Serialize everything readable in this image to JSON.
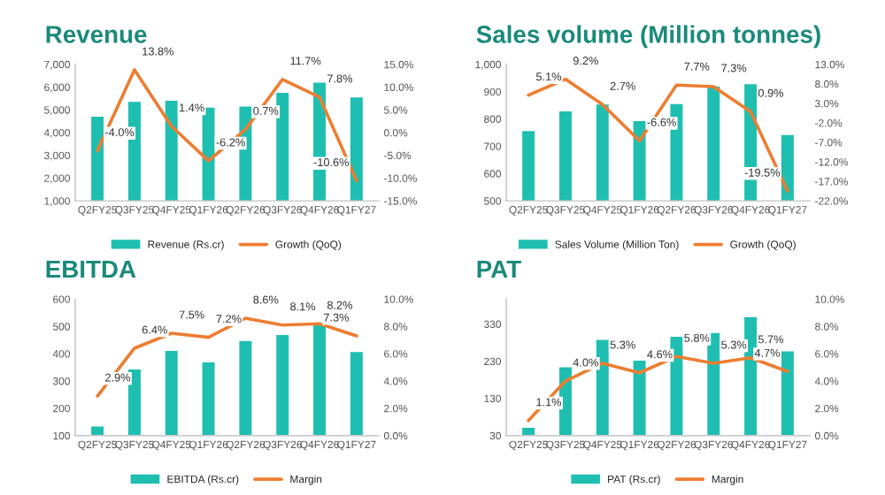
{
  "chart_data": [
    {
      "type": "bar",
      "title": "Revenue",
      "categories": [
        "Q2FY25",
        "Q3FY25",
        "Q4FY25",
        "Q1FY26",
        "Q2FY26",
        "Q3FY26",
        "Q4FY26",
        "Q1FY27"
      ],
      "series": [
        {
          "name": "Revenue (Rs.cr)",
          "type": "bar",
          "color": "#1ebfb0",
          "values": [
            4750,
            5400,
            5450,
            5150,
            5200,
            5800,
            6250,
            5600
          ]
        },
        {
          "name": "Growth (QoQ)",
          "type": "line",
          "axis": "y2",
          "color": "#ed7d31",
          "values": [
            -4.0,
            13.8,
            1.4,
            -6.2,
            0.7,
            11.7,
            7.8,
            -10.6
          ],
          "value_labels": [
            "-4.0%",
            "13.8%",
            "1.4%",
            "-6.2%",
            "0.7%",
            "11.7%",
            "7.8%",
            "-10.6%"
          ]
        }
      ],
      "ylim": [
        1000,
        7000
      ],
      "yticks": [
        {
          "value": 1000,
          "label": "1,000"
        },
        {
          "value": 2000,
          "label": "2,000"
        },
        {
          "value": 3000,
          "label": "3,000"
        },
        {
          "value": 4000,
          "label": "4,000"
        },
        {
          "value": 5000,
          "label": "5,000"
        },
        {
          "value": 6000,
          "label": "6,000"
        },
        {
          "value": 7000,
          "label": "7,000"
        }
      ],
      "y2lim": [
        -15,
        15
      ],
      "y2ticks": [
        {
          "value": -15,
          "label": "-15.0%"
        },
        {
          "value": -10,
          "label": "-10.0%"
        },
        {
          "value": -5,
          "label": "-5.0%"
        },
        {
          "value": 0,
          "label": "0.0%"
        },
        {
          "value": 5,
          "label": "5.0%"
        },
        {
          "value": 10,
          "label": "10.0%"
        },
        {
          "value": 15,
          "label": "15.0%"
        }
      ],
      "legend": "bottom",
      "grid": false
    },
    {
      "type": "bar",
      "title": "Sales volume (Million tonnes)",
      "categories": [
        "Q2FY25",
        "Q3FY25",
        "Q4FY25",
        "Q1FY26",
        "Q2FY26",
        "Q3FY26",
        "Q4FY26",
        "Q1FY27"
      ],
      "series": [
        {
          "name": "Sales Volume (Million Ton)",
          "type": "bar",
          "color": "#1ebfb0",
          "values": [
            760,
            832,
            857,
            797,
            859,
            924,
            932,
            746
          ]
        },
        {
          "name": "Growth (QoQ)",
          "type": "line",
          "axis": "y2",
          "color": "#ed7d31",
          "values": [
            5.1,
            9.2,
            2.7,
            -6.6,
            7.7,
            7.3,
            0.9,
            -19.5
          ],
          "value_labels": [
            "5.1%",
            "9.2%",
            "2.7%",
            "-6.6%",
            "7.7%",
            "7.3%",
            "0.9%",
            "-19.5%"
          ]
        }
      ],
      "ylim": [
        500,
        1000
      ],
      "yticks": [
        500,
        600,
        700,
        800,
        900,
        {
          "value": 1000,
          "label": "1,000"
        }
      ],
      "y2lim": [
        -22,
        13
      ],
      "y2ticks": [
        {
          "value": -22,
          "label": "-22.0%"
        },
        {
          "value": -17,
          "label": "-17.0%"
        },
        {
          "value": -12,
          "label": "-12.0%"
        },
        {
          "value": -7,
          "label": "-7.0%"
        },
        {
          "value": -2,
          "label": "-2.0%"
        },
        {
          "value": 3,
          "label": "3.0%"
        },
        {
          "value": 8,
          "label": "8.0%"
        },
        {
          "value": 13,
          "label": "13.0%"
        }
      ],
      "legend": "bottom",
      "grid": false
    },
    {
      "type": "bar",
      "title": "EBITDA",
      "categories": [
        "Q2FY25",
        "Q3FY25",
        "Q4FY25",
        "Q1FY26",
        "Q2FY26",
        "Q3FY26",
        "Q4FY26",
        "Q1FY27"
      ],
      "series": [
        {
          "name": "EBITDA (Rs.cr)",
          "type": "bar",
          "color": "#1ebfb0",
          "values": [
            138,
            347,
            415,
            373,
            451,
            473,
            512,
            411
          ]
        },
        {
          "name": "Margin",
          "type": "line",
          "axis": "y2",
          "color": "#ed7d31",
          "values": [
            2.9,
            6.4,
            7.5,
            7.2,
            8.6,
            8.1,
            8.2,
            7.3
          ],
          "value_labels": [
            "2.9%",
            "6.4%",
            "7.5%",
            "7.2%",
            "8.6%",
            "8.1%",
            "8.2%",
            "7.3%"
          ]
        }
      ],
      "ylim": [
        100,
        600
      ],
      "yticks": [
        100,
        200,
        300,
        400,
        500,
        600
      ],
      "y2lim": [
        0,
        10
      ],
      "y2ticks": [
        {
          "value": 0,
          "label": "0.0%"
        },
        {
          "value": 2,
          "label": "2.0%"
        },
        {
          "value": 4,
          "label": "4.0%"
        },
        {
          "value": 6,
          "label": "6.0%"
        },
        {
          "value": 8,
          "label": "8.0%"
        },
        {
          "value": 10,
          "label": "10.0%"
        }
      ],
      "legend": "bottom",
      "grid": false
    },
    {
      "type": "bar",
      "title": "PAT",
      "categories": [
        "Q2FY25",
        "Q3FY25",
        "Q4FY25",
        "Q1FY26",
        "Q2FY26",
        "Q3FY26",
        "Q4FY26",
        "Q1FY27"
      ],
      "series": [
        {
          "name": "PAT (Rs.cr)",
          "type": "bar",
          "color": "#1ebfb0",
          "values": [
            54,
            217,
            291,
            235,
            299,
            309,
            352,
            260
          ]
        },
        {
          "name": "Margin",
          "type": "line",
          "axis": "y2",
          "color": "#ed7d31",
          "values": [
            1.1,
            4.0,
            5.3,
            4.6,
            5.8,
            5.3,
            5.7,
            4.7
          ],
          "value_labels": [
            "1.1%",
            "4.0%",
            "5.3%",
            "4.6%",
            "5.8%",
            "5.3%",
            "5.7%",
            "4.7%"
          ]
        }
      ],
      "ylim": [
        30,
        397
      ],
      "yticks": [
        30,
        130,
        230,
        330
      ],
      "y2lim": [
        0,
        10
      ],
      "y2ticks": [
        {
          "value": 0,
          "label": "0.0%"
        },
        {
          "value": 2,
          "label": "2.0%"
        },
        {
          "value": 4,
          "label": "4.0%"
        },
        {
          "value": 6,
          "label": "6.0%"
        },
        {
          "value": 8,
          "label": "8.0%"
        },
        {
          "value": 10,
          "label": "10.0%"
        }
      ],
      "legend": "bottom",
      "grid": false
    }
  ]
}
